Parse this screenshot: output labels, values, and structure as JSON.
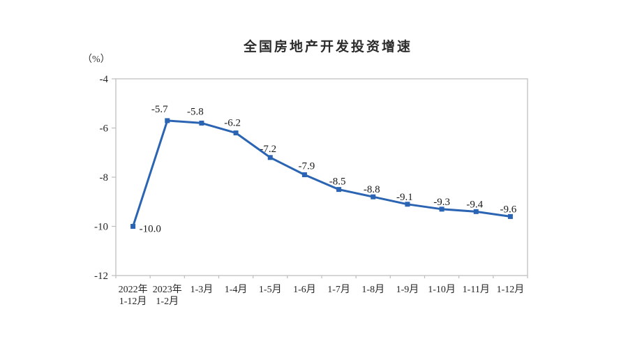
{
  "chart_data": {
    "type": "line",
    "title": "全国房地产开发投资增速",
    "unit_label": "（%）",
    "categories": [
      [
        "2022年",
        "1-12月"
      ],
      [
        "2023年",
        "1-2月"
      ],
      [
        "1-3月"
      ],
      [
        "1-4月"
      ],
      [
        "1-5月"
      ],
      [
        "1-6月"
      ],
      [
        "1-7月"
      ],
      [
        "1-8月"
      ],
      [
        "1-9月"
      ],
      [
        "1-10月"
      ],
      [
        "1-11月"
      ],
      [
        "1-12月"
      ]
    ],
    "values": [
      -10.0,
      -5.7,
      -5.8,
      -6.2,
      -7.2,
      -7.9,
      -8.5,
      -8.8,
      -9.1,
      -9.3,
      -9.4,
      -9.6
    ],
    "data_labels": [
      "-10.0",
      "-5.7",
      "-5.8",
      "-6.2",
      "-7.2",
      "-7.9",
      "-8.5",
      "-8.8",
      "-9.1",
      "-9.3",
      "-9.4",
      "-9.6"
    ],
    "ylim": [
      -12,
      -4
    ],
    "yticks": [
      "-4",
      "-6",
      "-8",
      "-10",
      "-12"
    ],
    "ytick_values": [
      -4,
      -6,
      -8,
      -10,
      -12
    ],
    "grid": false,
    "legend": "none",
    "marker": "square",
    "line_color": "#2a64b2",
    "axis_color": "#c9c9c9",
    "tick_color": "#bdbdbd",
    "label_color": "#1a1a1a",
    "axis_text_color": "#262626"
  }
}
